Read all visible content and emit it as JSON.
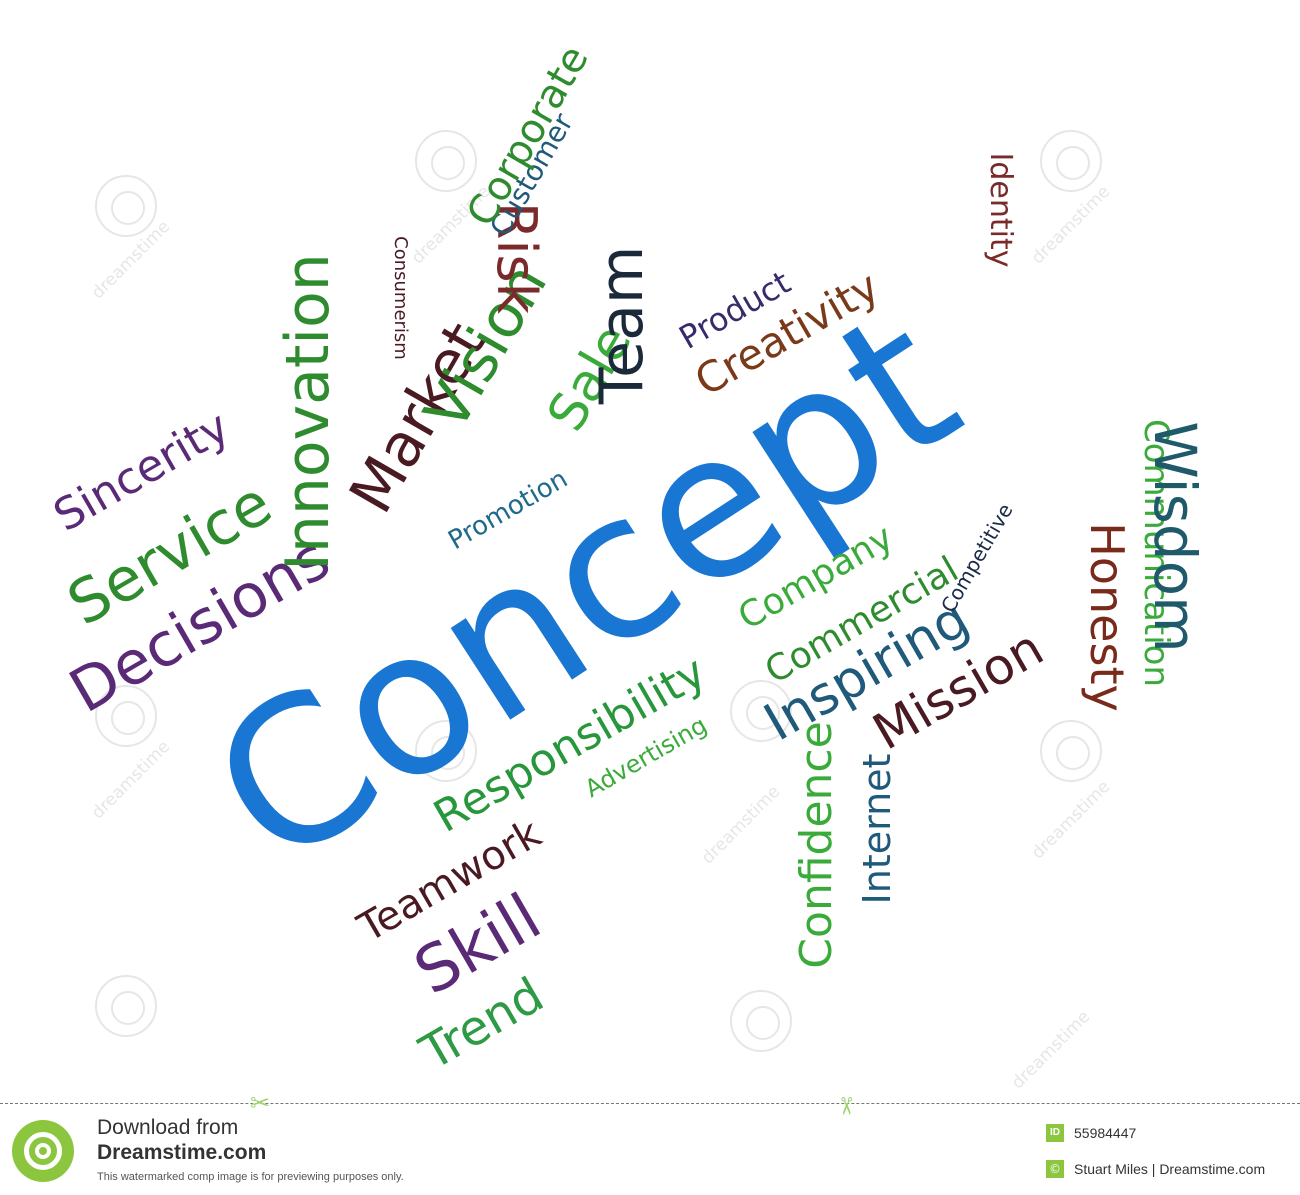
{
  "cloud": {
    "words": [
      {
        "key": "concept",
        "text": "Concept",
        "color": "#1976d2"
      },
      {
        "key": "responsibility",
        "text": "Responsibility",
        "color": "#28973c"
      },
      {
        "key": "advertising",
        "text": "Advertising",
        "color": "#3aab3a"
      },
      {
        "key": "teamwork",
        "text": "Teamwork",
        "color": "#4a1a22"
      },
      {
        "key": "skill",
        "text": "Skill",
        "color": "#5b2a76"
      },
      {
        "key": "trend",
        "text": "Trend",
        "color": "#2e9a45"
      },
      {
        "key": "decisions",
        "text": "Decisions",
        "color": "#5b2a76"
      },
      {
        "key": "service",
        "text": "Service",
        "color": "#2e8b2e"
      },
      {
        "key": "sincerity",
        "text": "Sincerity",
        "color": "#5b2a76"
      },
      {
        "key": "innovation",
        "text": "Innovation",
        "color": "#2e8b2e"
      },
      {
        "key": "market",
        "text": "Market",
        "color": "#4a1a22"
      },
      {
        "key": "consumerism",
        "text": "Consumerism",
        "color": "#4a1a22"
      },
      {
        "key": "vision",
        "text": "Vision",
        "color": "#2e8b2e"
      },
      {
        "key": "risk",
        "text": "Risk",
        "color": "#7a2a2a"
      },
      {
        "key": "sale",
        "text": "Sale",
        "color": "#3aab3a"
      },
      {
        "key": "customer",
        "text": "Customer",
        "color": "#1f5a7a"
      },
      {
        "key": "corporate",
        "text": "Corporate",
        "color": "#2e8b2e"
      },
      {
        "key": "team",
        "text": "Team",
        "color": "#1a2a3a"
      },
      {
        "key": "promotion",
        "text": "Promotion",
        "color": "#1f6a8a"
      },
      {
        "key": "product",
        "text": "Product",
        "color": "#3a2a6a"
      },
      {
        "key": "creativity",
        "text": "Creativity",
        "color": "#7a3a1a"
      },
      {
        "key": "identity",
        "text": "Identity",
        "color": "#7a2a2a"
      },
      {
        "key": "company",
        "text": "Company",
        "color": "#3aab3a"
      },
      {
        "key": "commercial",
        "text": "Commercial",
        "color": "#2e8b2e"
      },
      {
        "key": "inspiring",
        "text": "Inspiring",
        "color": "#1f5a7a"
      },
      {
        "key": "mission",
        "text": "Mission",
        "color": "#4a1a22"
      },
      {
        "key": "confidence",
        "text": "Confidence",
        "color": "#3aab3a"
      },
      {
        "key": "internet",
        "text": "Internet",
        "color": "#1f5a7a"
      },
      {
        "key": "competitive",
        "text": "Competitive",
        "color": "#1a2a4a"
      },
      {
        "key": "honesty",
        "text": "Honesty",
        "color": "#7a2a1a"
      },
      {
        "key": "communication",
        "text": "Communication",
        "color": "#3aab3a"
      },
      {
        "key": "wisdom",
        "text": "Wisdom",
        "color": "#1f5a6a"
      }
    ]
  },
  "watermark": {
    "logo_text": "dreamstime"
  },
  "footer": {
    "download_line1": "Download from",
    "download_line2": "Dreamstime.com",
    "note": "This watermarked comp image is for previewing purposes only.",
    "id_badge": "ID",
    "image_id": "55984447",
    "copyright_symbol": "©",
    "credit": "Stuart Miles | Dreamstime.com",
    "accent_color": "#8cc63f"
  }
}
